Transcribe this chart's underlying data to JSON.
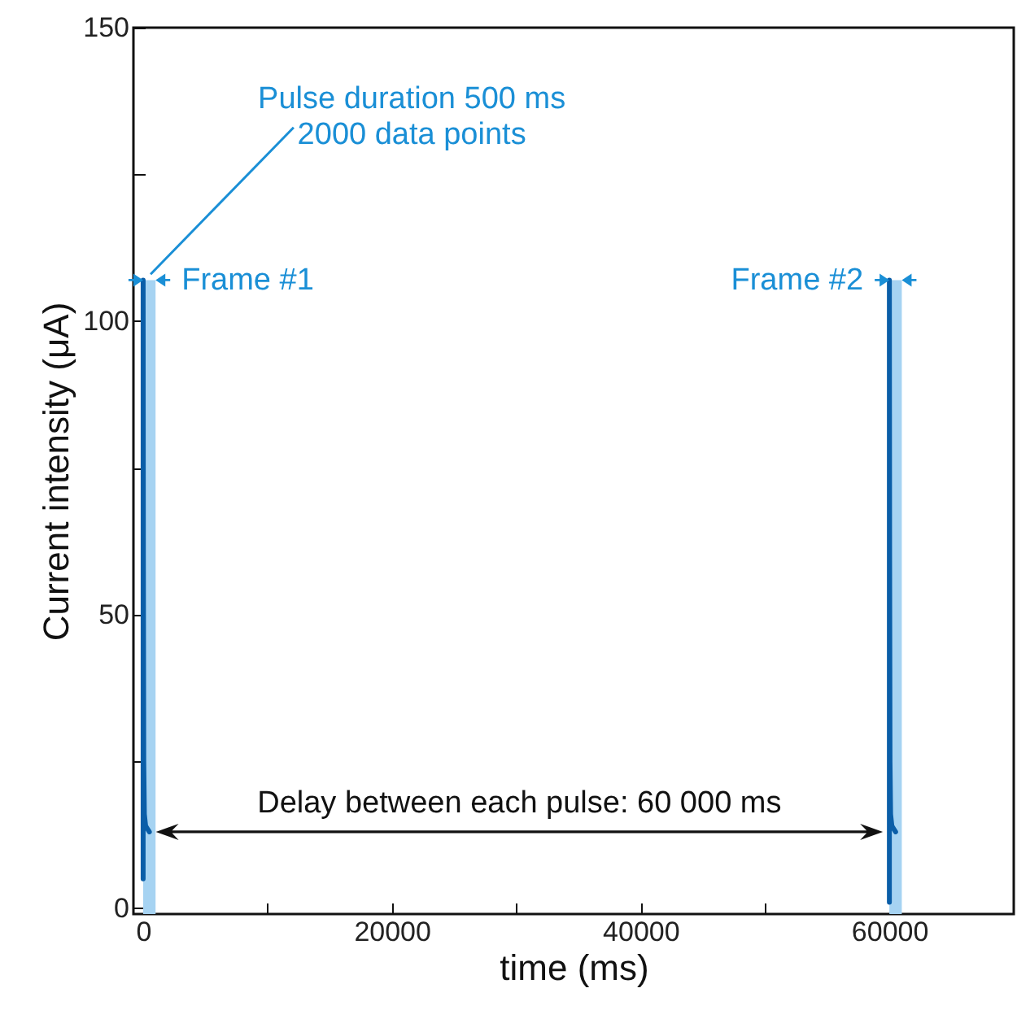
{
  "chart_data": {
    "type": "line",
    "xlabel": "time (ms)",
    "ylabel": "Current intensity (μA)",
    "series": [
      {
        "color": "#0a5ea8",
        "x": [
          0,
          0,
          20,
          50,
          100,
          200,
          500
        ],
        "values": [
          5,
          107,
          60,
          25,
          16,
          14,
          13
        ]
      },
      {
        "color": "#0a5ea8",
        "x": [
          60000,
          60000,
          60020,
          60050,
          60100,
          60200,
          60500
        ],
        "values": [
          1,
          107,
          60,
          25,
          16,
          14,
          13
        ]
      }
    ],
    "bands": [
      {
        "axis": "x",
        "from": 0,
        "to": 1000,
        "label": "Frame #1",
        "color": "#a6d3f2"
      },
      {
        "axis": "x",
        "from": 60000,
        "to": 61000,
        "label": "Frame #2",
        "color": "#a6d3f2"
      }
    ],
    "annotations": [
      {
        "text": "Pulse duration 500 ms\n2000 data points",
        "x": 0,
        "y": 107
      },
      "Delay between each pulse: 60 000 ms"
    ],
    "xlim": [
      -780,
      70000
    ],
    "ylim": [
      -1,
      150
    ],
    "xticks": [
      0,
      {
        "value": 10000,
        "label": null
      },
      20000,
      {
        "value": 30000,
        "label": null
      },
      40000,
      {
        "value": 50000,
        "label": null
      },
      60000
    ],
    "yticks": [
      0,
      {
        "value": 25,
        "label": null
      },
      50,
      {
        "value": 75,
        "label": null
      },
      100,
      {
        "value": 125,
        "label": null
      },
      150
    ],
    "grid": false,
    "marker": "none",
    "line_style": "solid"
  }
}
